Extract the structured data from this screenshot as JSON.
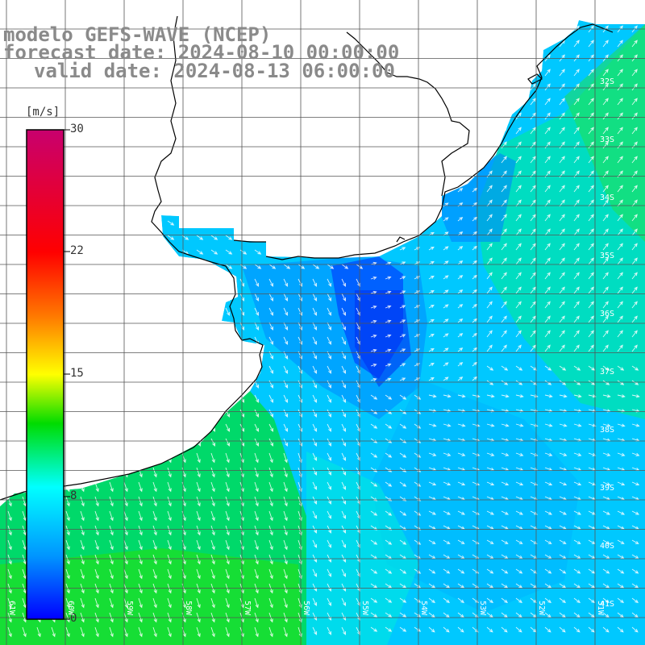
{
  "title": {
    "line1": "modelo GEFS-WAVE (NCEP)",
    "line2": "forecast date: 2024-08-10 00:00:00",
    "line3": "valid date: 2024-08-13 06:00:00"
  },
  "colorbar": {
    "unit": "[m/s]",
    "min": 0,
    "max": 30,
    "tick_labels": [
      "30",
      "22",
      "15",
      "8",
      "0"
    ],
    "colors": [
      "#c8006e",
      "#ff0000",
      "#ff7800",
      "#ffff00",
      "#00dc00",
      "#00ffff",
      "#0096ff",
      "#0000ff"
    ]
  },
  "map": {
    "variable": "wind speed and direction",
    "region": "South Brazil / Uruguay / Rio de la Plata coast",
    "lon_labels": [
      "61W",
      "60W",
      "59W",
      "58W",
      "57W",
      "56W",
      "55W",
      "54W",
      "53W",
      "52W",
      "51W"
    ],
    "lat_labels": [
      "32S",
      "33S",
      "34S",
      "35S",
      "36S",
      "37S",
      "38S",
      "39S",
      "40S",
      "41S"
    ],
    "land_color": "#ffffff",
    "coast_color": "#000000",
    "grid_color": "#555555"
  }
}
